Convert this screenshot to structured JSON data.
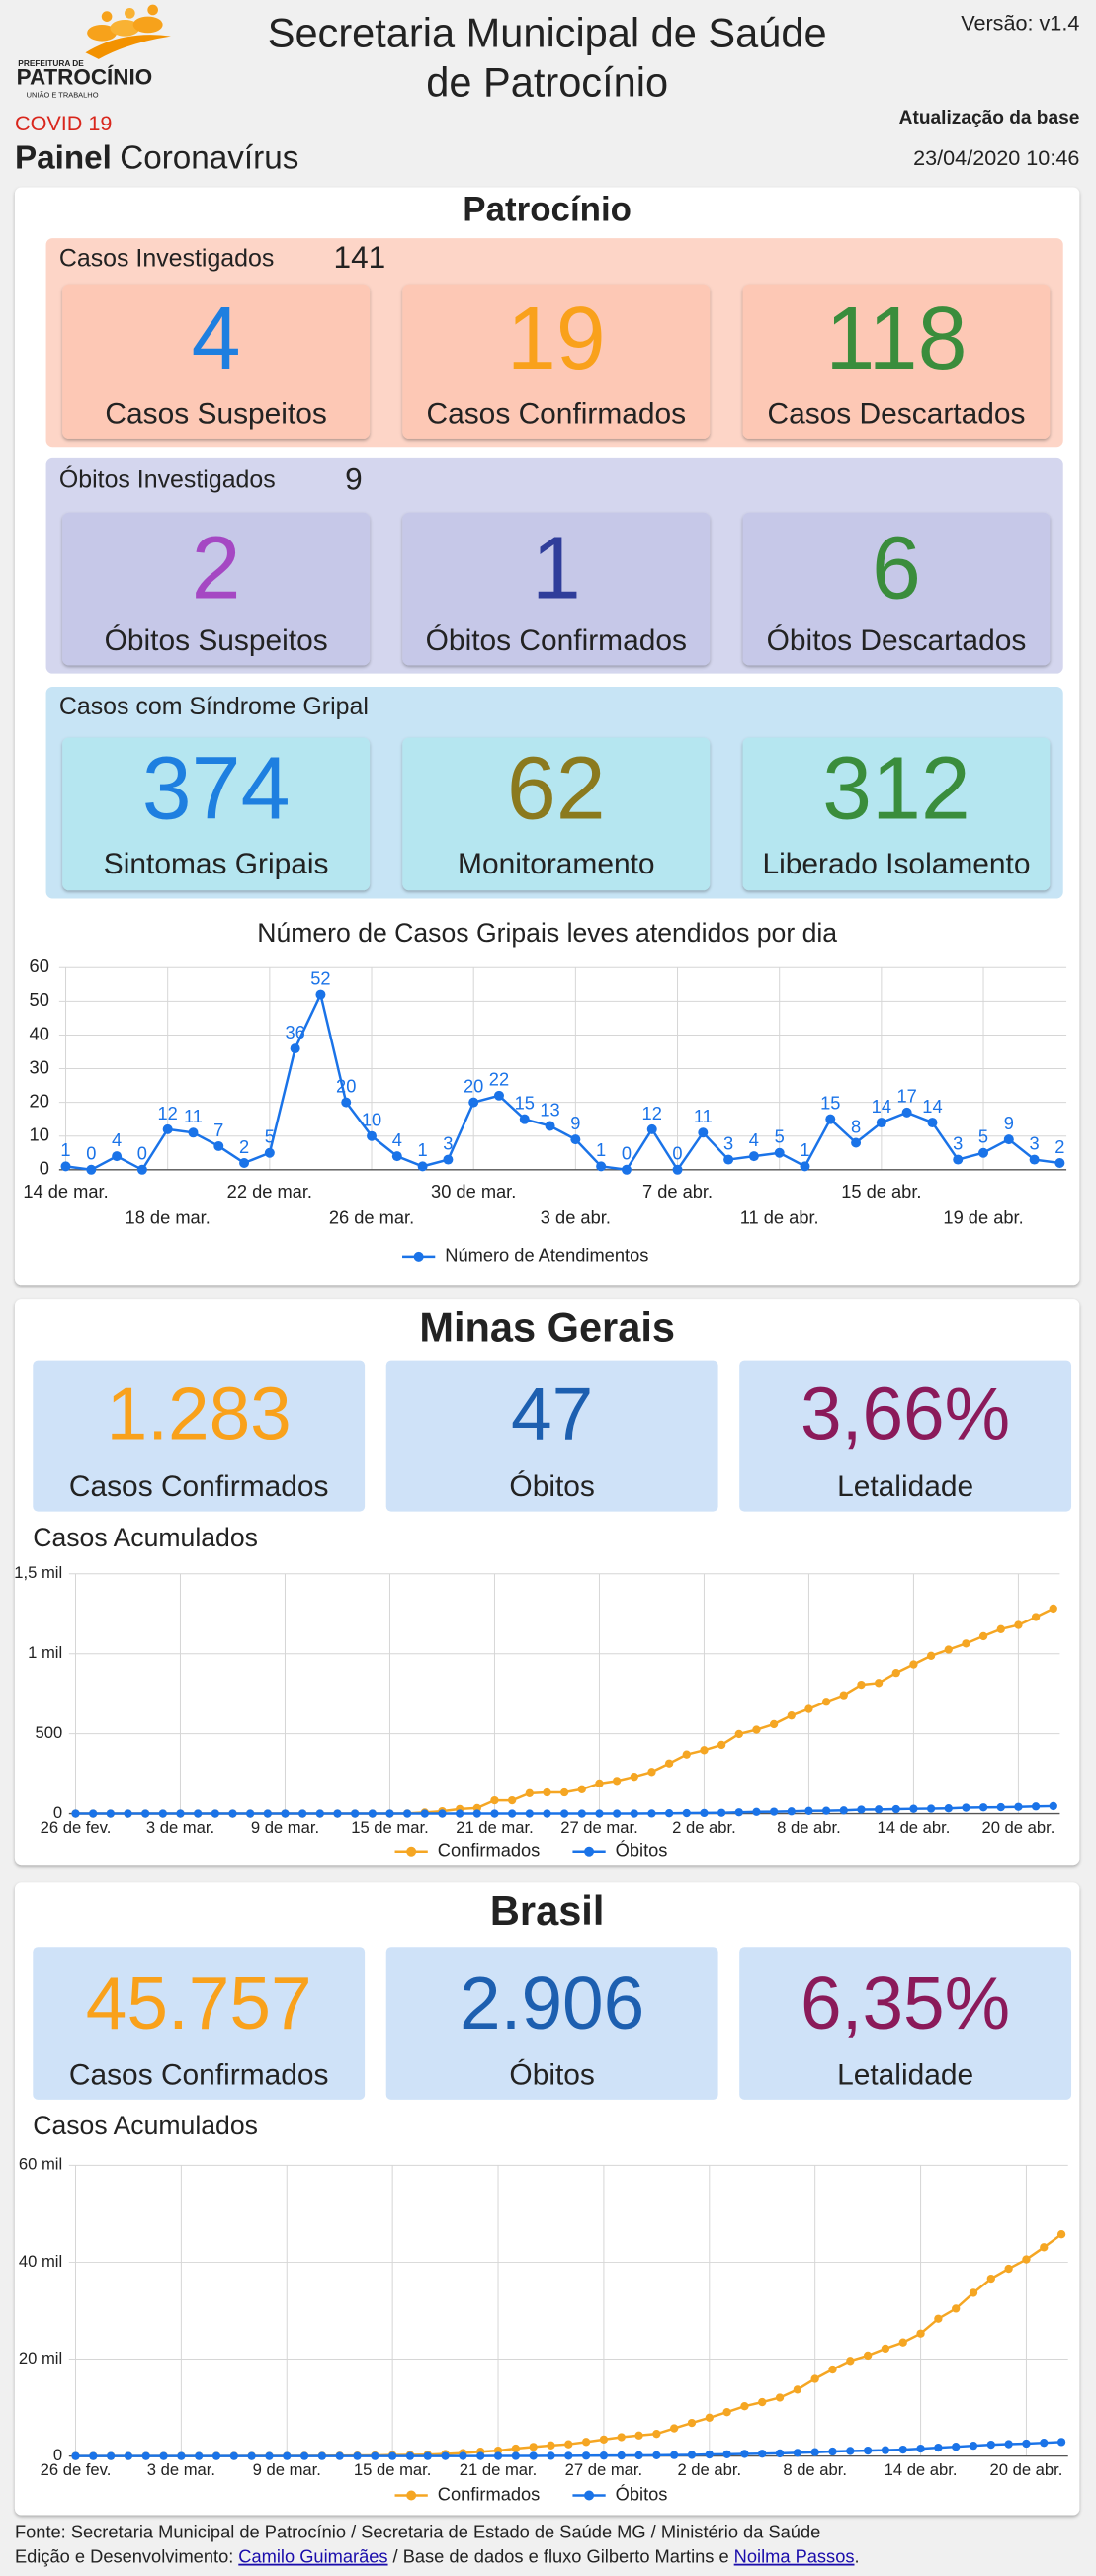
{
  "header": {
    "logo_top": "PREFEITURA DE",
    "logo_name": "PATROCÍNIO",
    "logo_motto": "UNIÃO E TRABALHO",
    "title_lines": [
      "Secretaria Municipal de Saúde",
      "de Patrocínio"
    ],
    "version": "Versão: v1.4",
    "tag": "COVID 19",
    "panel_bold": "Painel",
    "panel_rest": "Coronavírus",
    "update_label": "Atualização da base",
    "update_date": "23/04/2020 10:46"
  },
  "patrocinio": {
    "title": "Patrocínio",
    "groups": [
      {
        "label": "Casos Investigados",
        "total": 141,
        "cards": [
          {
            "value": 4,
            "label": "Casos Suspeitos"
          },
          {
            "value": 19,
            "label": "Casos Confirmados"
          },
          {
            "value": 118,
            "label": "Casos Descartados"
          }
        ]
      },
      {
        "label": "Óbitos Investigados",
        "total": 9,
        "cards": [
          {
            "value": 2,
            "label": "Óbitos Suspeitos"
          },
          {
            "value": 1,
            "label": "Óbitos Confirmados"
          },
          {
            "value": 6,
            "label": "Óbitos Descartados"
          }
        ]
      },
      {
        "label": "Casos com Síndrome Gripal",
        "cards": [
          {
            "value": 374,
            "label": "Sintomas Gripais"
          },
          {
            "value": 62,
            "label": "Monitoramento"
          },
          {
            "value": 312,
            "label": "Liberado Isolamento"
          }
        ]
      }
    ]
  },
  "minas": {
    "title": "Minas Gerais",
    "cards": [
      {
        "value": "1.283",
        "label": "Casos Confirmados"
      },
      {
        "value": "47",
        "label": "Óbitos"
      },
      {
        "value": "3,66%",
        "label": "Letalidade"
      }
    ]
  },
  "brasil": {
    "title": "Brasil",
    "cards": [
      {
        "value": "45.757",
        "label": "Casos Confirmados"
      },
      {
        "value": "2.906",
        "label": "Óbitos"
      },
      {
        "value": "6,35%",
        "label": "Letalidade"
      }
    ]
  },
  "chart_data": [
    {
      "type": "line",
      "title": "Número de Casos Gripais leves atendidos por dia",
      "categories": [
        "14 de mar.",
        null,
        null,
        null,
        "18 de mar.",
        null,
        null,
        null,
        "22 de mar.",
        null,
        null,
        null,
        "26 de mar.",
        null,
        null,
        null,
        "30 de mar.",
        null,
        null,
        null,
        "3 de abr.",
        null,
        null,
        null,
        "7 de abr.",
        null,
        null,
        null,
        "11 de abr.",
        null,
        null,
        null,
        "15 de abr.",
        null,
        null,
        null,
        "19 de abr.",
        null,
        null,
        null
      ],
      "series": [
        {
          "name": "Número de Atendimentos",
          "color": "#1a73e8",
          "values": [
            1,
            0,
            4,
            0,
            12,
            11,
            7,
            2,
            5,
            36,
            52,
            20,
            10,
            4,
            1,
            3,
            20,
            22,
            15,
            13,
            9,
            1,
            0,
            12,
            0,
            11,
            3,
            4,
            5,
            1,
            15,
            8,
            14,
            17,
            14,
            3,
            5,
            9,
            3,
            2
          ]
        }
      ],
      "ylim": [
        0,
        60
      ],
      "yticks": [
        0,
        10,
        20,
        30,
        40,
        50,
        60
      ],
      "grid": true,
      "data_labels": true,
      "legend": "bottom"
    },
    {
      "type": "line",
      "title": "Casos Acumulados",
      "categories": [
        "26 de fev.",
        null,
        null,
        null,
        null,
        null,
        "3 de mar.",
        null,
        null,
        null,
        null,
        null,
        "9 de mar.",
        null,
        null,
        null,
        null,
        null,
        "15 de mar.",
        null,
        null,
        null,
        null,
        null,
        "21 de mar.",
        null,
        null,
        null,
        null,
        null,
        "27 de mar.",
        null,
        null,
        null,
        null,
        null,
        "2 de abr.",
        null,
        null,
        null,
        null,
        null,
        "8 de abr.",
        null,
        null,
        null,
        null,
        null,
        "14 de abr.",
        null,
        null,
        null,
        null,
        null,
        "20 de abr.",
        null,
        null
      ],
      "series": [
        {
          "name": "Confirmados",
          "color": "#f5a623",
          "values": [
            0,
            0,
            0,
            0,
            0,
            0,
            0,
            0,
            0,
            0,
            0,
            0,
            0,
            0,
            0,
            0,
            0,
            0,
            0,
            1,
            7,
            15,
            29,
            35,
            83,
            83,
            128,
            133,
            133,
            153,
            189,
            205,
            231,
            261,
            314,
            370,
            397,
            430,
            498,
            525,
            560,
            614,
            655,
            700,
            741,
            806,
            817,
            880,
            933,
            987,
            1026,
            1064,
            1110,
            1154,
            1180,
            1230,
            1283
          ]
        },
        {
          "name": "Óbitos",
          "color": "#1a73e8",
          "values": [
            0,
            0,
            0,
            0,
            0,
            0,
            0,
            0,
            0,
            0,
            0,
            0,
            0,
            0,
            0,
            0,
            0,
            0,
            0,
            0,
            0,
            0,
            0,
            0,
            0,
            0,
            0,
            0,
            0,
            0,
            0,
            0,
            0,
            1,
            2,
            3,
            4,
            5,
            8,
            11,
            12,
            14,
            17,
            18,
            20,
            25,
            26,
            28,
            30,
            31,
            33,
            37,
            39,
            40,
            42,
            45,
            47
          ]
        }
      ],
      "ylim": [
        0,
        1500
      ],
      "yticks": [
        0,
        500,
        {
          "value": 1000,
          "label": "1 mil"
        },
        {
          "value": 1500,
          "label": "1,5 mil"
        }
      ],
      "grid": true,
      "legend": "bottom"
    },
    {
      "type": "line",
      "title": "Casos Acumulados",
      "categories": [
        "26 de fev.",
        null,
        null,
        null,
        null,
        null,
        "3 de mar.",
        null,
        null,
        null,
        null,
        null,
        "9 de mar.",
        null,
        null,
        null,
        null,
        null,
        "15 de mar.",
        null,
        null,
        null,
        null,
        null,
        "21 de mar.",
        null,
        null,
        null,
        null,
        null,
        "27 de mar.",
        null,
        null,
        null,
        null,
        null,
        "2 de abr.",
        null,
        null,
        null,
        null,
        null,
        "8 de abr.",
        null,
        null,
        null,
        null,
        null,
        "14 de abr.",
        null,
        null,
        null,
        null,
        null,
        "20 de abr.",
        null,
        null
      ],
      "series": [
        {
          "name": "Confirmados",
          "color": "#f5a623",
          "values": [
            1,
            1,
            1,
            2,
            2,
            2,
            2,
            3,
            8,
            13,
            19,
            25,
            25,
            34,
            52,
            77,
            98,
            121,
            200,
            234,
            291,
            428,
            621,
            904,
            1128,
            1546,
            1891,
            2201,
            2433,
            2915,
            3417,
            3904,
            4256,
            4579,
            5717,
            6836,
            7910,
            9056,
            10278,
            11130,
            12056,
            13717,
            15927,
            17857,
            19638,
            20727,
            22169,
            23430,
            25262,
            28320,
            30425,
            33682,
            36599,
            38654,
            40581,
            43079,
            45757
          ]
        },
        {
          "name": "Óbitos",
          "color": "#1a73e8",
          "values": [
            0,
            0,
            0,
            0,
            0,
            0,
            0,
            0,
            0,
            0,
            0,
            0,
            0,
            0,
            0,
            0,
            0,
            0,
            0,
            0,
            1,
            4,
            7,
            11,
            18,
            25,
            34,
            46,
            57,
            77,
            92,
            114,
            136,
            159,
            201,
            240,
            324,
            359,
            445,
            486,
            553,
            667,
            800,
            941,
            1056,
            1124,
            1223,
            1328,
            1532,
            1736,
            1924,
            2141,
            2347,
            2462,
            2575,
            2741,
            2906
          ]
        }
      ],
      "ylim": [
        0,
        60000
      ],
      "yticks": [
        0,
        {
          "value": 20000,
          "label": "20 mil"
        },
        {
          "value": 40000,
          "label": "40 mil"
        },
        {
          "value": 60000,
          "label": "60 mil"
        }
      ],
      "grid": true,
      "legend": "bottom"
    }
  ],
  "footer": {
    "source": "Fonte: Secretaria Municipal de Patrocínio / Secretaria de Estado de Saúde MG / Ministério da Saúde",
    "credit_label": "Edição e Desenvolvimento:",
    "credit_link1": "Camilo Guimarães",
    "credit_middle": "/ Base de dados e fluxo Gilberto Martins e",
    "credit_link2": "Noilma Passos",
    "credit_end": "."
  }
}
